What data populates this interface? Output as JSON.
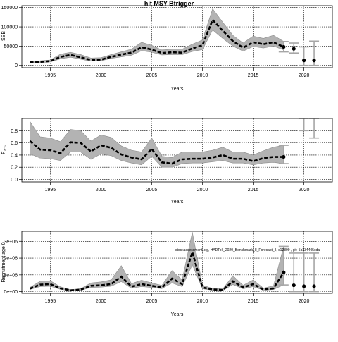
{
  "chart_data": [
    {
      "type": "line",
      "title": "hit MSY Btrigger",
      "xlabel": "Years",
      "ylabel": "SSB",
      "xlim": [
        1992.2,
        2022.8
      ],
      "ylim": [
        -6000,
        155000
      ],
      "xticks": [
        1995,
        2000,
        2005,
        2010,
        2015,
        2020
      ],
      "xtick_labels": [
        "1995",
        "2000",
        "2005",
        "2010",
        "2015",
        "2020"
      ],
      "yticks": [
        0,
        50000,
        100000,
        150000
      ],
      "ytick_labels": [
        "0",
        "50000",
        "100000",
        "150000"
      ],
      "grid": true,
      "series": [
        {
          "role": "median",
          "x": [
            1993,
            1994,
            1995,
            1996,
            1997,
            1998,
            1999,
            2000,
            2001,
            2002,
            2003,
            2004,
            2005,
            2006,
            2007,
            2008,
            2009,
            2010,
            2011,
            2012,
            2013,
            2014,
            2015,
            2016,
            2017,
            2018
          ],
          "values": [
            8000,
            9000,
            11000,
            22000,
            27000,
            21000,
            14000,
            15000,
            22000,
            28000,
            33000,
            47000,
            41000,
            32000,
            34000,
            33000,
            44000,
            52000,
            118000,
            90000,
            63000,
            46000,
            60000,
            55000,
            60000,
            48000
          ],
          "lower": [
            6000,
            7000,
            9000,
            17000,
            21000,
            16000,
            11000,
            12000,
            18000,
            22000,
            26000,
            38000,
            34000,
            27000,
            28000,
            28000,
            36000,
            41000,
            92000,
            70000,
            50000,
            37000,
            49000,
            45000,
            50000,
            40000
          ],
          "upper": [
            11000,
            12000,
            14000,
            29000,
            34000,
            28000,
            19000,
            20000,
            28000,
            35000,
            42000,
            60000,
            52000,
            40000,
            42000,
            42000,
            55000,
            66000,
            147000,
            112000,
            78000,
            58000,
            76000,
            70000,
            78000,
            62000
          ]
        }
      ],
      "forecast": {
        "x": [
          2018,
          2019,
          2020,
          2021
        ],
        "values": [
          48000,
          43000,
          13000,
          13000
        ],
        "lower": [
          35000,
          32000,
          0,
          0
        ],
        "upper": [
          62000,
          58000,
          48000,
          63000
        ]
      }
    },
    {
      "type": "line",
      "xlabel": "Years",
      "ylabel": "F₃₋₅",
      "xlim": [
        1992.2,
        2022.8
      ],
      "ylim": [
        -0.04,
        1.0
      ],
      "xticks": [
        1995,
        2000,
        2005,
        2010,
        2015,
        2020
      ],
      "xtick_labels": [
        "1995",
        "2000",
        "2005",
        "2010",
        "2015",
        "2020"
      ],
      "yticks": [
        0.0,
        0.2,
        0.4,
        0.6,
        0.8
      ],
      "ytick_labels": [
        "0.0",
        "0.2",
        "0.4",
        "0.6",
        "0.8"
      ],
      "grid": true,
      "series": [
        {
          "role": "median",
          "x": [
            1993,
            1994,
            1995,
            1996,
            1997,
            1998,
            1999,
            2000,
            2001,
            2002,
            2003,
            2004,
            2005,
            2006,
            2007,
            2008,
            2009,
            2010,
            2011,
            2012,
            2013,
            2014,
            2015,
            2016,
            2017,
            2018
          ],
          "values": [
            0.63,
            0.49,
            0.48,
            0.43,
            0.61,
            0.6,
            0.46,
            0.56,
            0.52,
            0.41,
            0.36,
            0.33,
            0.5,
            0.28,
            0.26,
            0.33,
            0.34,
            0.34,
            0.36,
            0.4,
            0.34,
            0.34,
            0.3,
            0.35,
            0.37,
            0.37
          ],
          "lower": [
            0.42,
            0.35,
            0.34,
            0.31,
            0.45,
            0.45,
            0.33,
            0.42,
            0.39,
            0.31,
            0.27,
            0.24,
            0.38,
            0.2,
            0.2,
            0.26,
            0.27,
            0.27,
            0.29,
            0.31,
            0.27,
            0.27,
            0.24,
            0.27,
            0.28,
            0.26
          ],
          "upper": [
            0.95,
            0.7,
            0.68,
            0.62,
            0.82,
            0.8,
            0.63,
            0.73,
            0.69,
            0.55,
            0.48,
            0.45,
            0.68,
            0.38,
            0.36,
            0.45,
            0.45,
            0.45,
            0.48,
            0.53,
            0.45,
            0.45,
            0.4,
            0.47,
            0.53,
            0.56
          ]
        }
      ],
      "forecast": {
        "x": [
          2018,
          2020,
          2021
        ],
        "values": [
          0.37,
          null,
          null
        ],
        "lower": [
          0.26,
          0.8,
          0.68
        ],
        "upper": [
          0.56,
          1.0,
          1.0
        ]
      }
    },
    {
      "type": "line",
      "xlabel": "Years",
      "ylabel": "Recruitment age 0",
      "xlim": [
        1992.2,
        2022.8
      ],
      "ylim": [
        -100000,
        3600000
      ],
      "xticks": [
        1995,
        2000,
        2005,
        2010,
        2015,
        2020
      ],
      "xtick_labels": [
        "1995",
        "2000",
        "2005",
        "2010",
        "2015",
        "2020"
      ],
      "yticks": [
        0,
        1000000,
        2000000,
        3000000
      ],
      "ytick_labels": [
        "0e+00",
        "1e+06",
        "2e+06",
        "3e+06"
      ],
      "grid": true,
      "annotation": "stockassessment.org, HADTok_2020_Benchmark_II_Forecast_II, c12899 , git: 5b334405cda",
      "series": [
        {
          "role": "median",
          "x": [
            1993,
            1994,
            1995,
            1996,
            1997,
            1998,
            1999,
            2000,
            2001,
            2002,
            2003,
            2004,
            2005,
            2006,
            2007,
            2008,
            2009,
            2010,
            2011,
            2012,
            2013,
            2014,
            2015,
            2016,
            2017,
            2018
          ],
          "values": [
            180000,
            420000,
            450000,
            200000,
            80000,
            120000,
            350000,
            380000,
            450000,
            900000,
            300000,
            450000,
            350000,
            250000,
            780000,
            450000,
            2350000,
            250000,
            130000,
            100000,
            620000,
            250000,
            450000,
            130000,
            200000,
            1150000
          ],
          "lower": [
            130000,
            300000,
            320000,
            140000,
            60000,
            80000,
            250000,
            270000,
            320000,
            600000,
            200000,
            300000,
            250000,
            180000,
            520000,
            300000,
            1600000,
            170000,
            90000,
            70000,
            420000,
            170000,
            300000,
            90000,
            130000,
            400000
          ],
          "upper": [
            250000,
            620000,
            650000,
            290000,
            120000,
            180000,
            520000,
            580000,
            700000,
            1550000,
            480000,
            680000,
            520000,
            370000,
            1250000,
            700000,
            3550000,
            380000,
            200000,
            160000,
            950000,
            380000,
            700000,
            210000,
            350000,
            2700000
          ]
        }
      ],
      "forecast": {
        "x": [
          2018,
          2019,
          2020,
          2021
        ],
        "values": [
          1150000,
          380000,
          320000,
          320000
        ],
        "lower": [
          400000,
          0,
          0,
          0
        ],
        "upper": [
          2700000,
          2300000,
          2300000,
          2300000
        ]
      }
    }
  ]
}
